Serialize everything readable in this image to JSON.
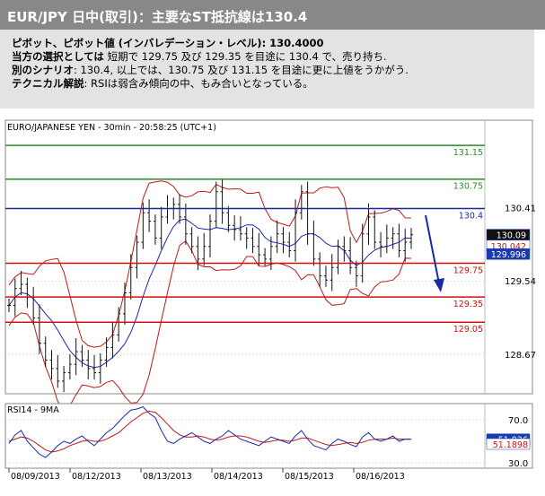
{
  "header": {
    "title": "EUR/JPY 日中(取引)：主要なST抵抗線は130.4"
  },
  "summary": {
    "pivot_label": "ピボット、ピボット値 (インバレデーション・レベル)",
    "pivot_value": ": 130.4000",
    "preferred_label": "当方の選択としては",
    "preferred_text": "短期で 129.75 及び 129.35 を目途に 130.4 で、売り持ち.",
    "alternative_label": "別のシナリオ",
    "alternative_text": ": 130.4, 以上では、130.75 及び 131.15 を目途に更に上値をうかがう.",
    "technical_label": "テクニカル解説",
    "technical_text": ": RSIは弱含み傾向の中、もみ合いとなっている。"
  },
  "chart_data": {
    "type": "line",
    "title": "EURO/JAPANESE YEN - 30min - 20:58:25 (UTC+1)",
    "x_tick_labels": [
      "08/09/2013",
      "08/12/2013",
      "08/13/2013",
      "08/14/2013",
      "08/15/2013",
      "08/16/2013"
    ],
    "y_tick_labels": [
      "130.41",
      "129.54",
      "128.67"
    ],
    "y_ticks": [
      130.41,
      129.54,
      128.67
    ],
    "ylim": [
      128.2,
      131.45
    ],
    "resistance_levels": [
      {
        "value": 131.15,
        "label": "131.15",
        "color": "#2a8a2a"
      },
      {
        "value": 130.75,
        "label": "130.75",
        "color": "#2a8a2a"
      },
      {
        "value": 130.4,
        "label": "130.4",
        "color": "#1a2aa0"
      }
    ],
    "support_levels": [
      {
        "value": 129.75,
        "label": "129.75",
        "color": "#d01010"
      },
      {
        "value": 129.35,
        "label": "129.35",
        "color": "#d01010"
      },
      {
        "value": 129.05,
        "label": "129.05",
        "color": "#d01010"
      }
    ],
    "price_badges": [
      {
        "label": "130.09",
        "value": 130.09,
        "bg": "#111111",
        "fg": "#ffffff"
      },
      {
        "label": "130.042",
        "value": 129.96,
        "bg": "#ffffff",
        "fg": "#d01010"
      },
      {
        "label": "129.996",
        "value": 129.86,
        "bg": "#1a3ab0",
        "fg": "#ffffff"
      }
    ],
    "close_series": [
      129.25,
      129.45,
      129.5,
      129.35,
      129.1,
      128.8,
      128.6,
      128.5,
      128.35,
      128.45,
      128.55,
      128.7,
      128.6,
      128.5,
      128.45,
      128.6,
      128.75,
      128.9,
      129.15,
      129.4,
      129.7,
      130.0,
      130.35,
      130.25,
      130.05,
      130.3,
      130.4,
      130.45,
      130.3,
      130.1,
      129.95,
      129.8,
      129.95,
      130.25,
      130.6,
      130.35,
      130.2,
      130.15,
      130.1,
      130.05,
      129.95,
      129.85,
      129.8,
      129.95,
      130.1,
      130.0,
      129.9,
      130.35,
      130.6,
      130.1,
      129.8,
      129.6,
      129.55,
      129.7,
      129.95,
      129.9,
      129.7,
      129.6,
      130.1,
      130.3,
      130.0,
      129.95,
      130.05,
      130.1,
      129.9,
      130.0,
      130.09
    ],
    "rsi": {
      "title": "RSI14 - 9MA",
      "ylim": [
        25,
        85
      ],
      "y_tick_labels": [
        "70.0",
        "30.0"
      ],
      "y_ticks": [
        70,
        30
      ],
      "rsi_series": [
        48,
        56,
        60,
        50,
        44,
        38,
        35,
        40,
        46,
        50,
        48,
        52,
        55,
        50,
        46,
        52,
        58,
        62,
        68,
        74,
        79,
        80,
        82,
        76,
        72,
        60,
        50,
        48,
        52,
        55,
        58,
        54,
        50,
        48,
        52,
        55,
        60,
        56,
        52,
        50,
        48,
        46,
        50,
        54,
        52,
        50,
        48,
        55,
        60,
        52,
        46,
        44,
        42,
        48,
        52,
        50,
        47,
        45,
        54,
        58,
        52,
        50,
        52,
        55,
        50,
        52,
        51.9
      ],
      "ma_series": [
        50,
        52,
        54,
        53,
        50,
        46,
        42,
        40,
        41,
        43,
        46,
        48,
        50,
        51,
        50,
        50,
        52,
        55,
        58,
        63,
        68,
        72,
        76,
        78,
        77,
        72,
        66,
        60,
        56,
        54,
        54,
        55,
        54,
        52,
        51,
        52,
        54,
        55,
        55,
        54,
        52,
        50,
        49,
        50,
        51,
        51,
        50,
        51,
        53,
        53,
        51,
        49,
        47,
        46,
        47,
        48,
        49,
        48,
        49,
        51,
        52,
        52,
        52,
        53,
        52,
        52,
        51.8
      ],
      "badges": [
        {
          "label": "51.936",
          "value": 51.9,
          "bg": "#1a3ab0",
          "fg": "#ffffff"
        },
        {
          "label": "51.1898",
          "value": 47.5,
          "bg": "#ffffff",
          "fg": "#d01010"
        }
      ]
    }
  }
}
